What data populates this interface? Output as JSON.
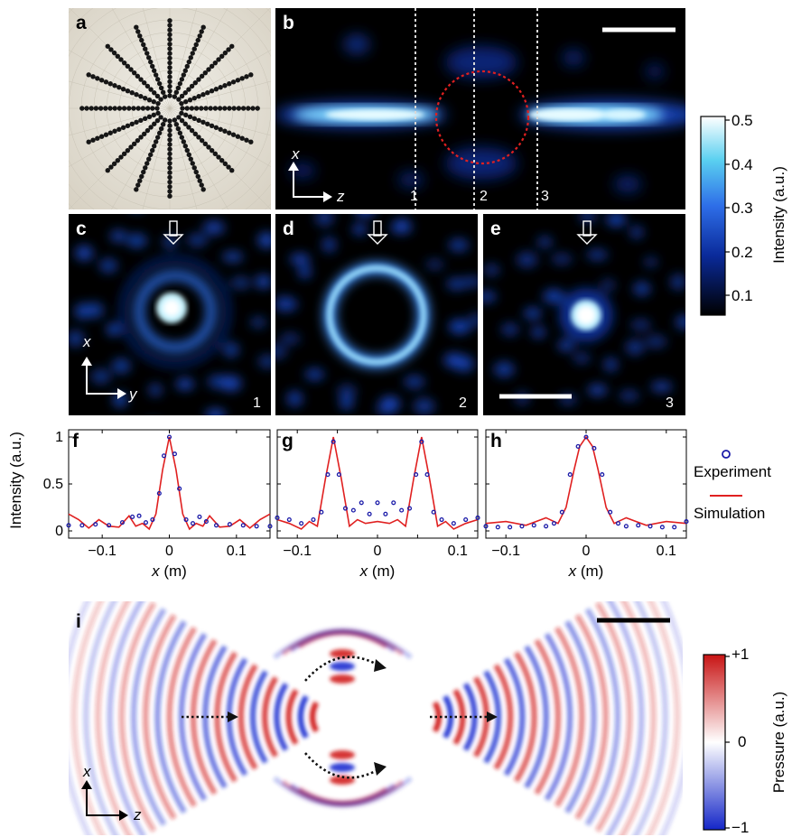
{
  "panels": {
    "a": "a",
    "b": "b",
    "c": "c",
    "d": "d",
    "e": "e",
    "f": "f",
    "g": "g",
    "h": "h",
    "i": "i"
  },
  "plane_numbers": [
    "1",
    "2",
    "3"
  ],
  "axes_tags": {
    "x": "x",
    "y": "y",
    "z": "z"
  },
  "colorbar_intensity": {
    "label": "Intensity (a.u.)",
    "ticks": [
      "0.5",
      "0.4",
      "0.3",
      "0.2",
      "0.1"
    ],
    "range": [
      0.05,
      0.5
    ],
    "colormap": "black-blue-cyan-white"
  },
  "colorbar_pressure": {
    "label": "Pressure (a.u.)",
    "ticks": [
      "+1",
      "0",
      "−1"
    ],
    "range": [
      -1,
      1
    ],
    "colormap": "blue-white-red"
  },
  "legend": {
    "experiment": "Experiment",
    "simulation": "Simulation",
    "experiment_color": "#1a1aa8",
    "simulation_color": "#e02020"
  },
  "chart_data": [
    {
      "panel": "f",
      "type": "line",
      "ylabel": "Intensity (a.u.)",
      "xlabel_var": "x",
      "xlabel_unit": " (m)",
      "xlim": [
        -0.15,
        0.15
      ],
      "ylim": [
        0,
        1
      ],
      "xticks": [
        -0.1,
        0,
        0.1
      ],
      "xticklabels": [
        "−0.1",
        "0",
        "0.1"
      ],
      "yticks": [
        0,
        0.5,
        1
      ],
      "yticklabels": [
        "0",
        "0.5",
        "1"
      ],
      "series": [
        {
          "name": "Simulation",
          "style": "line",
          "x": [
            -0.15,
            -0.135,
            -0.12,
            -0.105,
            -0.09,
            -0.075,
            -0.06,
            -0.05,
            -0.04,
            -0.03,
            -0.02,
            -0.01,
            0,
            0.01,
            0.02,
            0.03,
            0.04,
            0.05,
            0.06,
            0.075,
            0.09,
            0.105,
            0.12,
            0.135,
            0.15
          ],
          "y": [
            0.18,
            0.12,
            0.03,
            0.12,
            0.05,
            0.04,
            0.16,
            0.05,
            0.08,
            0.02,
            0.18,
            0.65,
            1.0,
            0.65,
            0.18,
            0.02,
            0.08,
            0.05,
            0.16,
            0.04,
            0.05,
            0.12,
            0.03,
            0.12,
            0.18
          ]
        },
        {
          "name": "Experiment",
          "style": "markers",
          "x": [
            -0.15,
            -0.13,
            -0.11,
            -0.09,
            -0.07,
            -0.055,
            -0.045,
            -0.035,
            -0.025,
            -0.015,
            -0.008,
            0,
            0.008,
            0.015,
            0.025,
            0.035,
            0.045,
            0.055,
            0.07,
            0.09,
            0.11,
            0.13,
            0.15
          ],
          "y": [
            0.06,
            0.06,
            0.07,
            0.06,
            0.09,
            0.15,
            0.16,
            0.09,
            0.12,
            0.4,
            0.8,
            1.0,
            0.82,
            0.45,
            0.12,
            0.08,
            0.15,
            0.1,
            0.06,
            0.07,
            0.06,
            0.05,
            0.05
          ]
        }
      ]
    },
    {
      "panel": "g",
      "type": "line",
      "ylabel": "",
      "xlabel_var": "x",
      "xlabel_unit": " (m)",
      "xlim": [
        -0.125,
        0.125
      ],
      "ylim": [
        0,
        1
      ],
      "xticks": [
        -0.1,
        -0.05,
        0,
        0.05,
        0.1
      ],
      "xticklabels": [
        "−0.1",
        "",
        "0",
        "",
        "0.1"
      ],
      "yticks": [
        0,
        0.5,
        1
      ],
      "yticklabels": [
        "",
        "",
        ""
      ],
      "series": [
        {
          "name": "Simulation",
          "style": "line",
          "x": [
            -0.125,
            -0.11,
            -0.095,
            -0.085,
            -0.075,
            -0.065,
            -0.055,
            -0.045,
            -0.035,
            -0.025,
            -0.015,
            0,
            0.015,
            0.025,
            0.035,
            0.045,
            0.055,
            0.065,
            0.075,
            0.085,
            0.095,
            0.11,
            0.125
          ],
          "y": [
            0.12,
            0.08,
            0.02,
            0.1,
            0.05,
            0.55,
            1.0,
            0.55,
            0.05,
            0.12,
            0.08,
            0.1,
            0.08,
            0.12,
            0.05,
            0.55,
            1.0,
            0.55,
            0.05,
            0.1,
            0.02,
            0.08,
            0.12
          ]
        },
        {
          "name": "Experiment",
          "style": "markers",
          "x": [
            -0.125,
            -0.11,
            -0.095,
            -0.08,
            -0.07,
            -0.062,
            -0.055,
            -0.048,
            -0.04,
            -0.03,
            -0.02,
            -0.01,
            0,
            0.01,
            0.02,
            0.03,
            0.04,
            0.048,
            0.055,
            0.062,
            0.07,
            0.08,
            0.095,
            0.11,
            0.125
          ],
          "y": [
            0.14,
            0.12,
            0.08,
            0.12,
            0.2,
            0.6,
            0.95,
            0.6,
            0.24,
            0.22,
            0.3,
            0.18,
            0.3,
            0.18,
            0.3,
            0.22,
            0.24,
            0.6,
            0.95,
            0.6,
            0.2,
            0.12,
            0.08,
            0.12,
            0.14
          ]
        }
      ]
    },
    {
      "panel": "h",
      "type": "line",
      "ylabel": "",
      "xlabel_var": "x",
      "xlabel_unit": " (m)",
      "xlim": [
        -0.125,
        0.125
      ],
      "ylim": [
        0,
        1
      ],
      "xticks": [
        -0.1,
        0,
        0.1
      ],
      "xticklabels": [
        "−0.1",
        "0",
        "0.1"
      ],
      "yticks": [
        0,
        0.5,
        1
      ],
      "yticklabels": [
        "",
        "",
        ""
      ],
      "series": [
        {
          "name": "Simulation",
          "style": "line",
          "x": [
            -0.125,
            -0.1,
            -0.075,
            -0.05,
            -0.035,
            -0.025,
            -0.015,
            -0.008,
            0,
            0.008,
            0.015,
            0.025,
            0.035,
            0.05,
            0.075,
            0.1,
            0.125
          ],
          "y": [
            0.08,
            0.1,
            0.06,
            0.14,
            0.08,
            0.25,
            0.65,
            0.9,
            1.0,
            0.9,
            0.65,
            0.25,
            0.08,
            0.14,
            0.06,
            0.1,
            0.08
          ]
        },
        {
          "name": "Experiment",
          "style": "markers",
          "x": [
            -0.125,
            -0.11,
            -0.095,
            -0.08,
            -0.065,
            -0.05,
            -0.04,
            -0.03,
            -0.02,
            -0.01,
            0,
            0.01,
            0.02,
            0.03,
            0.04,
            0.05,
            0.065,
            0.08,
            0.095,
            0.11,
            0.125
          ],
          "y": [
            0.05,
            0.04,
            0.04,
            0.05,
            0.06,
            0.05,
            0.08,
            0.2,
            0.6,
            0.9,
            1.0,
            0.88,
            0.6,
            0.2,
            0.08,
            0.05,
            0.06,
            0.05,
            0.04,
            0.04,
            0.1
          ]
        }
      ]
    }
  ]
}
